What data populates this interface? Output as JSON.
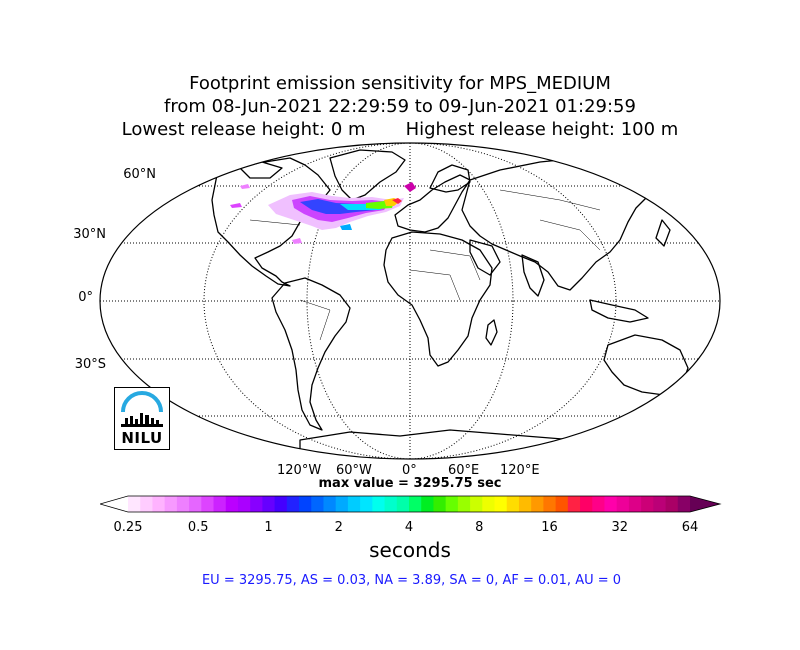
{
  "title": {
    "line1": "Footprint emission sensitivity for MPS_MEDIUM",
    "line2": "from 08-Jun-2021 22:29:59 to 09-Jun-2021 01:29:59",
    "line3": "Lowest release height: 0 m       Highest release height: 100 m"
  },
  "map": {
    "projection": "robinson",
    "lat_labels": [
      "60°N",
      "30°N",
      "0°",
      "30°S"
    ],
    "lon_labels": [
      "120°W",
      "60°W",
      "0°",
      "60°E",
      "120°E"
    ],
    "grid": true
  },
  "max_value_label": "max value = 3295.75 sec",
  "colorbar": {
    "ticks": [
      "0.25",
      "0.5",
      "1",
      "2",
      "4",
      "8",
      "16",
      "32",
      "64"
    ],
    "units": "seconds",
    "colors": [
      "#ffffff",
      "#ffe6ff",
      "#ffccff",
      "#ffb3ff",
      "#f799ff",
      "#ee80ff",
      "#e566ff",
      "#dd44ff",
      "#cc22ff",
      "#bb00ff",
      "#aa00ff",
      "#8800ff",
      "#6600ff",
      "#4400ff",
      "#2222ff",
      "#0044ff",
      "#0066ff",
      "#0088ff",
      "#00aaff",
      "#00ccff",
      "#00e5ff",
      "#00ffee",
      "#00ffcc",
      "#00ffaa",
      "#00ff66",
      "#00ee22",
      "#33ee00",
      "#66ff00",
      "#99ff00",
      "#ccff00",
      "#eeff00",
      "#ffff00",
      "#ffdd00",
      "#ffbb00",
      "#ff9900",
      "#ff7700",
      "#ff5500",
      "#ff2244",
      "#ff0066",
      "#ff0088",
      "#ff00aa",
      "#ee0099",
      "#dd0088",
      "#cc0077",
      "#bb0077",
      "#aa0066",
      "#880066",
      "#660055"
    ]
  },
  "summary": "EU = 3295.75,  AS = 0.03,  NA = 3.89,  SA = 0,  AF = 0.01,  AU = 0",
  "logo": {
    "text": "NILU"
  }
}
